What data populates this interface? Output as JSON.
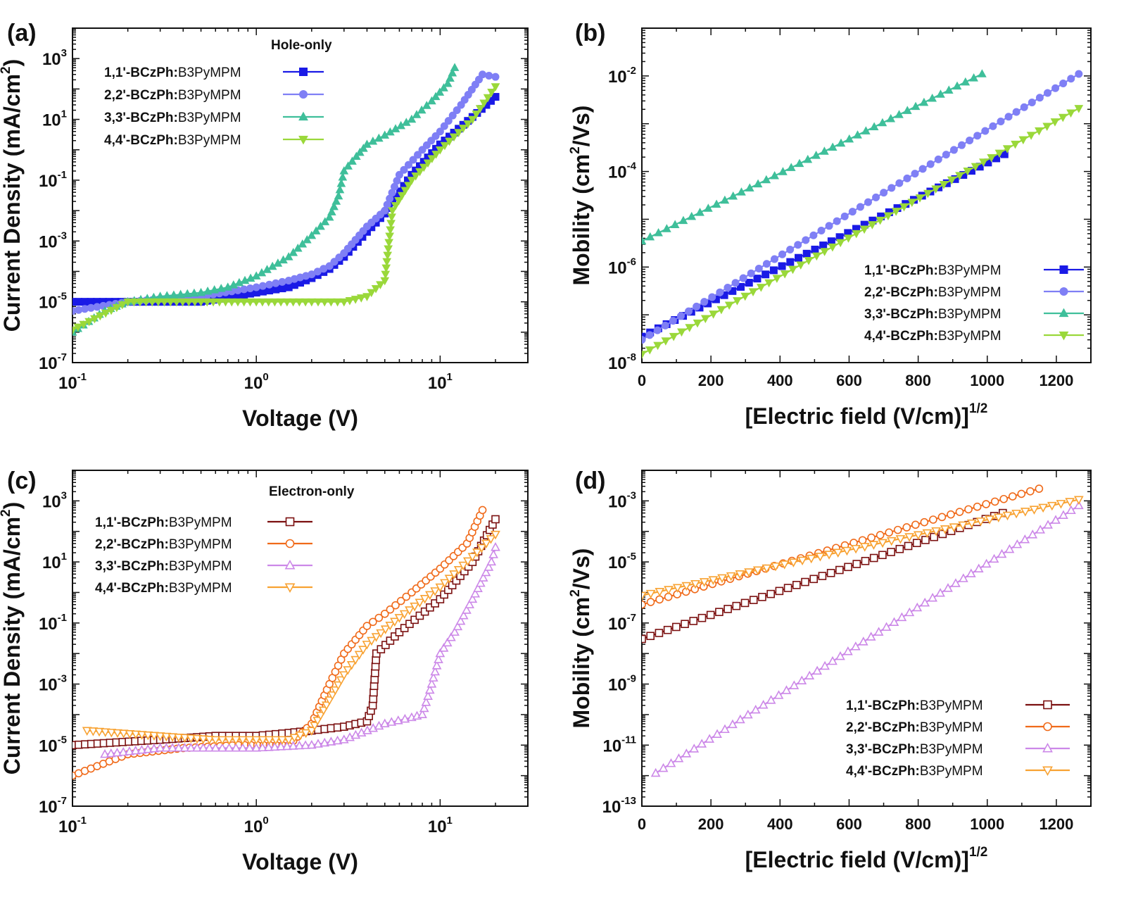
{
  "figure": {
    "panel_labels": [
      "(a)",
      "(b)",
      "(c)",
      "(d)"
    ]
  },
  "chart_data": [
    {
      "panel": "(a)",
      "type": "scatter",
      "annotation": "Hole-only",
      "xlabel": "Voltage (V)",
      "ylabel_main": "Current Density (mA/cm",
      "ylabel_sup": "2",
      "ylabel_end": ")",
      "xscale": "log",
      "yscale": "log",
      "xlim": [
        0.1,
        30
      ],
      "ylim": [
        1e-07,
        10000
      ],
      "xticks": [
        -1,
        0,
        1
      ],
      "yticks": [
        -7,
        -5,
        -3,
        -1,
        1,
        3
      ],
      "legend_position": "top-left",
      "series": [
        {
          "legend_bold": "1,1'-BCzPh:",
          "legend_rest": "B3PyMPM",
          "color": "#1a1ae6",
          "marker": "square",
          "filled": true,
          "x": [
            0.1,
            0.25,
            0.5,
            1.0,
            1.5,
            2.0,
            2.5,
            3.0,
            4.0,
            5.0,
            7.0,
            10.0,
            15.0,
            20.0
          ],
          "y": [
            1e-05,
            1e-05,
            1e-05,
            2e-05,
            3e-05,
            6e-05,
            0.00012,
            0.0003,
            0.002,
            0.008,
            0.15,
            1.5,
            12,
            55
          ]
        },
        {
          "legend_bold": "2,2'-BCzPh:",
          "legend_rest": "B3PyMPM",
          "color": "#7f7ff5",
          "marker": "circle",
          "filled": true,
          "x": [
            0.1,
            0.2,
            0.5,
            1.0,
            1.5,
            2.0,
            2.5,
            3.0,
            4.0,
            5.0,
            6.0,
            8.0,
            10.0,
            13.0,
            17.0,
            20.0
          ],
          "y": [
            5e-06,
            1e-05,
            1.5e-05,
            3e-05,
            5e-05,
            8e-05,
            0.00015,
            0.0004,
            0.003,
            0.01,
            0.15,
            1,
            4,
            30,
            300,
            250
          ]
        },
        {
          "legend_bold": "3,3'-BCzPh:",
          "legend_rest": "B3PyMPM",
          "color": "#3fbf9a",
          "marker": "triangle-up",
          "filled": true,
          "x": [
            0.1,
            0.15,
            0.2,
            0.3,
            0.5,
            0.7,
            1.0,
            1.5,
            2.0,
            2.5,
            2.8,
            3.0,
            3.5,
            4.0,
            5.0,
            7.0,
            9.0,
            11.0,
            12.0
          ],
          "y": [
            1e-06,
            5e-06,
            1e-05,
            1.5e-05,
            2e-05,
            3e-05,
            7e-05,
            0.0003,
            0.0015,
            0.006,
            0.03,
            0.2,
            0.6,
            1.5,
            3,
            10,
            40,
            150,
            500
          ]
        },
        {
          "legend_bold": "4,4'-BCzPh:",
          "legend_rest": "B3PyMPM",
          "color": "#9ad83a",
          "marker": "triangle-down",
          "filled": true,
          "x": [
            0.1,
            0.2,
            0.5,
            1.0,
            2.0,
            3.0,
            4.0,
            5.0,
            5.5,
            7.0,
            10.0,
            15.0,
            20.0
          ],
          "y": [
            1.2e-06,
            1e-05,
            1e-05,
            1e-05,
            1e-05,
            1e-05,
            1.5e-05,
            5e-05,
            0.01,
            0.1,
            1,
            10,
            120
          ]
        }
      ]
    },
    {
      "panel": "(b)",
      "type": "line",
      "xlabel_main": "[Electric field (V/cm)]",
      "xlabel_sup": "1/2",
      "ylabel_main": "Mobility (cm",
      "ylabel_sup": "2",
      "ylabel_end": "/Vs)",
      "xscale": "linear",
      "yscale": "log",
      "xlim": [
        0,
        1300
      ],
      "ylim": [
        1e-08,
        0.1
      ],
      "xticks": [
        0,
        200,
        400,
        600,
        800,
        1000,
        1200
      ],
      "yticks": [
        -8,
        -6,
        -4,
        -2
      ],
      "legend_position": "bottom-right",
      "series": [
        {
          "legend_bold": "1,1'-BCzPh:",
          "legend_rest": "B3PyMPM",
          "color": "#1a1ae6",
          "marker": "square",
          "filled": true,
          "x": [
            0,
            1050
          ],
          "y": [
            3.5e-08,
            0.00023
          ]
        },
        {
          "legend_bold": "2,2'-BCzPh:",
          "legend_rest": "B3PyMPM",
          "color": "#7f7ff5",
          "marker": "circle",
          "filled": true,
          "x": [
            0,
            1265
          ],
          "y": [
            3e-08,
            0.011
          ]
        },
        {
          "legend_bold": "3,3'-BCzPh:",
          "legend_rest": "B3PyMPM",
          "color": "#3fbf9a",
          "marker": "triangle-up",
          "filled": true,
          "x": [
            0,
            985
          ],
          "y": [
            3.5e-06,
            0.011
          ]
        },
        {
          "legend_bold": "4,4'-BCzPh:",
          "legend_rest": "B3PyMPM",
          "color": "#9ad83a",
          "marker": "triangle-down",
          "filled": true,
          "x": [
            0,
            1265
          ],
          "y": [
            1.5e-08,
            0.0021
          ]
        }
      ]
    },
    {
      "panel": "(c)",
      "type": "scatter",
      "annotation": "Electron-only",
      "xlabel": "Voltage (V)",
      "ylabel_main": "Current Density (mA/cm",
      "ylabel_sup": "2",
      "ylabel_end": ")",
      "xscale": "log",
      "yscale": "log",
      "xlim": [
        0.1,
        30
      ],
      "ylim": [
        1e-07,
        10000
      ],
      "xticks": [
        -1,
        0,
        1
      ],
      "yticks": [
        -7,
        -5,
        -3,
        -1,
        1,
        3
      ],
      "legend_position": "top-left",
      "series": [
        {
          "legend_bold": "1,1'-BCzPh:",
          "legend_rest": "B3PyMPM",
          "color": "#7b1010",
          "marker": "square",
          "filled": false,
          "x": [
            0.1,
            0.3,
            0.6,
            1.0,
            1.5,
            2.0,
            3.0,
            4.0,
            4.3,
            4.5,
            6.0,
            10.0,
            15.0,
            20.0
          ],
          "y": [
            1e-05,
            1.5e-05,
            2e-05,
            2e-05,
            2.5e-05,
            3e-05,
            4e-05,
            6e-05,
            0.0002,
            0.01,
            0.05,
            0.6,
            10,
            250
          ]
        },
        {
          "legend_bold": "2,2'-BCzPh:",
          "legend_rest": "B3PyMPM",
          "color": "#f06a1a",
          "marker": "circle",
          "filled": false,
          "x": [
            0.1,
            0.2,
            0.4,
            0.8,
            1.5,
            2.0,
            2.5,
            3.0,
            4.0,
            5.0,
            7.0,
            10.0,
            14.0,
            17.0
          ],
          "y": [
            1e-06,
            5e-06,
            8e-06,
            1e-05,
            1e-05,
            5e-05,
            0.001,
            0.01,
            0.08,
            0.2,
            1,
            6,
            40,
            500
          ]
        },
        {
          "legend_bold": "3,3'-BCzPh:",
          "legend_rest": "B3PyMPM",
          "color": "#cc88e8",
          "marker": "triangle-up",
          "filled": false,
          "x": [
            0.15,
            0.3,
            0.6,
            1.0,
            2.0,
            3.0,
            5.0,
            7.0,
            8.0,
            9.0,
            10.0,
            12.0,
            15.0,
            19.0,
            20.0
          ],
          "y": [
            5e-06,
            8e-06,
            8e-06,
            8e-06,
            1e-05,
            1.5e-05,
            5e-05,
            8e-05,
            0.0001,
            0.001,
            0.01,
            0.05,
            0.6,
            10,
            30
          ]
        },
        {
          "legend_bold": "4,4'-BCzPh:",
          "legend_rest": "B3PyMPM",
          "color": "#f8a232",
          "marker": "triangle-down",
          "filled": false,
          "x": [
            0.12,
            0.3,
            0.6,
            1.0,
            1.5,
            2.0,
            2.5,
            3.0,
            4.0,
            6.0,
            10.0,
            15.0,
            20.0
          ],
          "y": [
            3e-05,
            2e-05,
            1.5e-05,
            1.5e-05,
            1.5e-05,
            3e-05,
            0.0003,
            0.002,
            0.02,
            0.15,
            1.5,
            15,
            80
          ]
        }
      ]
    },
    {
      "panel": "(d)",
      "type": "line",
      "xlabel_main": "[Electric field (V/cm)]",
      "xlabel_sup": "1/2",
      "ylabel_main": "Mobility (cm",
      "ylabel_sup": "2",
      "ylabel_end": "/Vs)",
      "xscale": "linear",
      "yscale": "log",
      "xlim": [
        0,
        1300
      ],
      "ylim": [
        1e-13,
        0.01
      ],
      "xticks": [
        0,
        200,
        400,
        600,
        800,
        1000,
        1200
      ],
      "yticks": [
        -13,
        -11,
        -9,
        -7,
        -5,
        -3
      ],
      "legend_position": "bottom-right",
      "series": [
        {
          "legend_bold": "1,1'-BCzPh:",
          "legend_rest": "B3PyMPM",
          "color": "#7b1010",
          "marker": "square",
          "filled": false,
          "x": [
            0,
            1045
          ],
          "y": [
            3e-08,
            0.0004
          ]
        },
        {
          "legend_bold": "2,2'-BCzPh:",
          "legend_rest": "B3PyMPM",
          "color": "#f06a1a",
          "marker": "circle",
          "filled": false,
          "x": [
            0,
            1150
          ],
          "y": [
            4e-07,
            0.0025
          ]
        },
        {
          "legend_bold": "3,3'-BCzPh:",
          "legend_rest": "B3PyMPM",
          "color": "#cc88e8",
          "marker": "triangle-up",
          "filled": false,
          "x": [
            40,
            1265
          ],
          "y": [
            1.2e-12,
            0.0007
          ]
        },
        {
          "legend_bold": "4,4'-BCzPh:",
          "legend_rest": "B3PyMPM",
          "color": "#f8a232",
          "marker": "triangle-down",
          "filled": false,
          "x": [
            0,
            1265
          ],
          "y": [
            8e-07,
            0.0011
          ]
        }
      ]
    }
  ]
}
